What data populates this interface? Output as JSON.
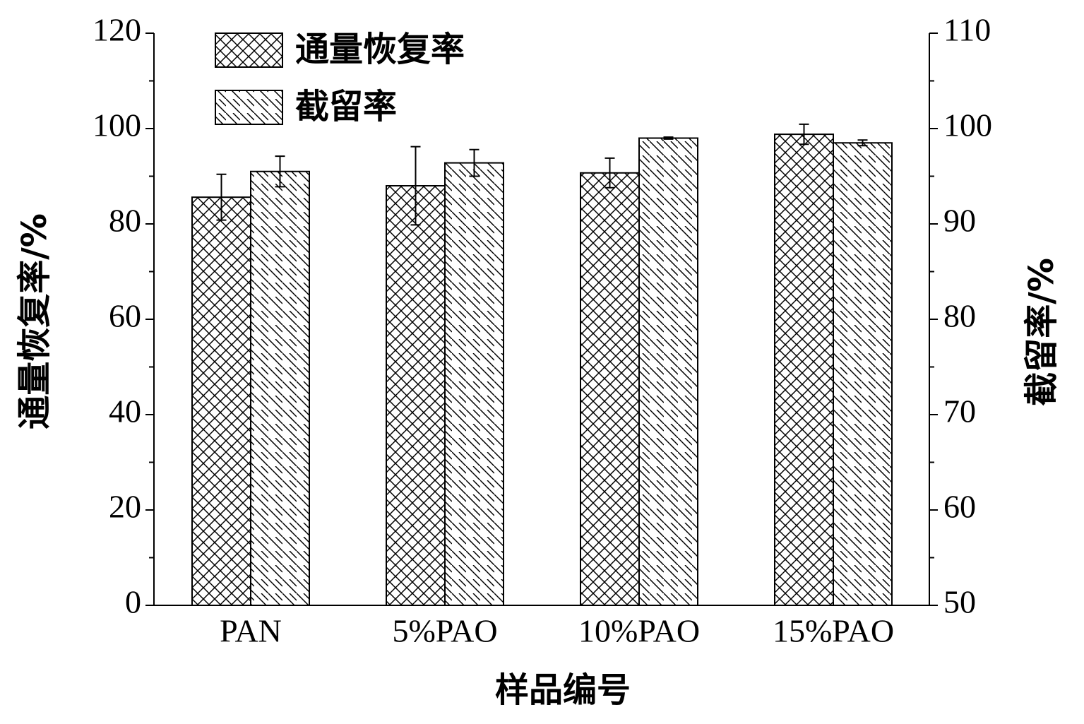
{
  "chart_data": {
    "type": "bar",
    "x_label": "样品编号",
    "y_label": "通量恢复率/%",
    "y2_label": "截留率/%",
    "categories": [
      "PAN",
      "5%PAO",
      "10%PAO",
      "15%PAO"
    ],
    "series": [
      {
        "name": "通量恢复率",
        "color": "#000000",
        "pattern": "crosshatch",
        "values": [
          85.6,
          88.0,
          90.7,
          98.8
        ],
        "errors": [
          4.8,
          8.2,
          3.1,
          2.1
        ]
      },
      {
        "name": "截留率",
        "color": "#000000",
        "pattern": "diagonal",
        "axis": "y2",
        "values": [
          95.5,
          96.4,
          99.0,
          98.5
        ],
        "errors": [
          1.6,
          1.4,
          0.1,
          0.3
        ]
      }
    ],
    "ylim": [
      0,
      120
    ],
    "yticks": [
      0,
      20,
      40,
      60,
      80,
      100,
      120
    ],
    "y2lim": [
      50,
      110
    ],
    "y2ticks": [
      50,
      60,
      70,
      80,
      90,
      100,
      110
    ],
    "grid": false,
    "legend": "upper left"
  }
}
